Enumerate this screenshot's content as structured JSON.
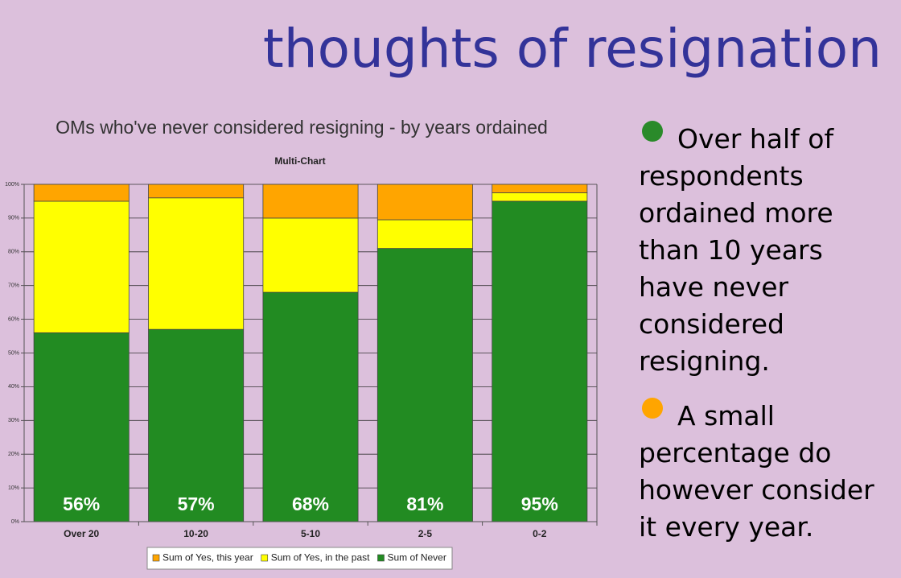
{
  "title": "thoughts of resignation",
  "bullets": [
    {
      "text": "Over half of respondents ordained more than 10 years have never considered resigning.",
      "color": "#2a8a2a"
    },
    {
      "text": "A small percentage do however consider it every year.",
      "color": "#ffa500"
    }
  ],
  "chart_data": {
    "type": "stacked_bar",
    "title": "OMs who've never considered resigning - by years ordained",
    "subtitle": "Multi-Chart",
    "categories": [
      "Over 20",
      "10-20",
      "5-10",
      "2-5",
      "0-2"
    ],
    "series": [
      {
        "name": "Sum of Yes, this year",
        "color": "#ffa500",
        "values": [
          5,
          4,
          10,
          10.5,
          2.5
        ]
      },
      {
        "name": "Sum of Yes, in the past",
        "color": "#ffff00",
        "values": [
          39,
          39,
          22,
          8.5,
          2.5
        ]
      },
      {
        "name": "Sum of Never",
        "color": "#228b22",
        "values": [
          56,
          57,
          68,
          81,
          95
        ],
        "value_labels": [
          "56%",
          "57%",
          "68%",
          "81%",
          "95%"
        ]
      }
    ],
    "ylim": [
      0,
      100
    ],
    "yticks": [
      {
        "value": 0,
        "label": "0%"
      },
      {
        "value": 10,
        "label": "10%"
      },
      {
        "value": 20,
        "label": "20%"
      },
      {
        "value": 30,
        "label": "30%"
      },
      {
        "value": 40,
        "label": "40%"
      },
      {
        "value": 50,
        "label": "50%"
      },
      {
        "value": 60,
        "label": "60%"
      },
      {
        "value": 70,
        "label": "70%"
      },
      {
        "value": 80,
        "label": "80%"
      },
      {
        "value": 90,
        "label": "90%"
      },
      {
        "value": 100,
        "label": "100%"
      }
    ],
    "grid": true,
    "legend": "bottom"
  }
}
